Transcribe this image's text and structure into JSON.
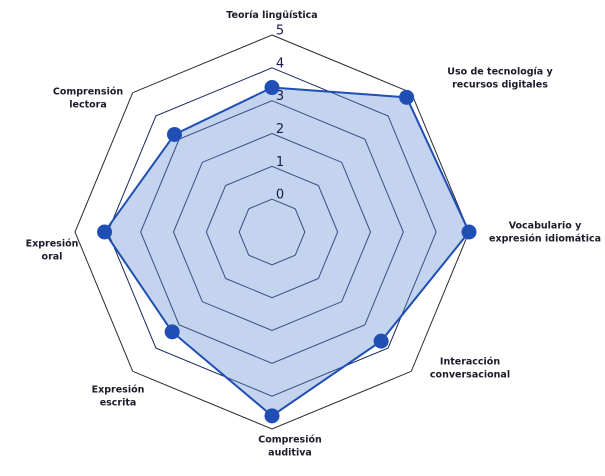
{
  "chart_data": {
    "type": "radar",
    "categories": [
      "Teoría lingüística",
      "Uso de tecnología y\nrecursos digitales",
      "Vocabulario y\nexpresión idiomática",
      "Interacción\nconversacional",
      "Compresión\nauditiva",
      "Expresión\nescrita",
      "Expresión\noral",
      "Comprensión\nlectora"
    ],
    "values": [
      3.4,
      4.8,
      5.0,
      3.7,
      4.6,
      3.3,
      4.1,
      3.2
    ],
    "color": "#1f4fb4",
    "rlim": [
      -1,
      5
    ],
    "rticks": [
      0,
      1,
      2,
      3,
      4,
      5
    ],
    "grid": true
  }
}
